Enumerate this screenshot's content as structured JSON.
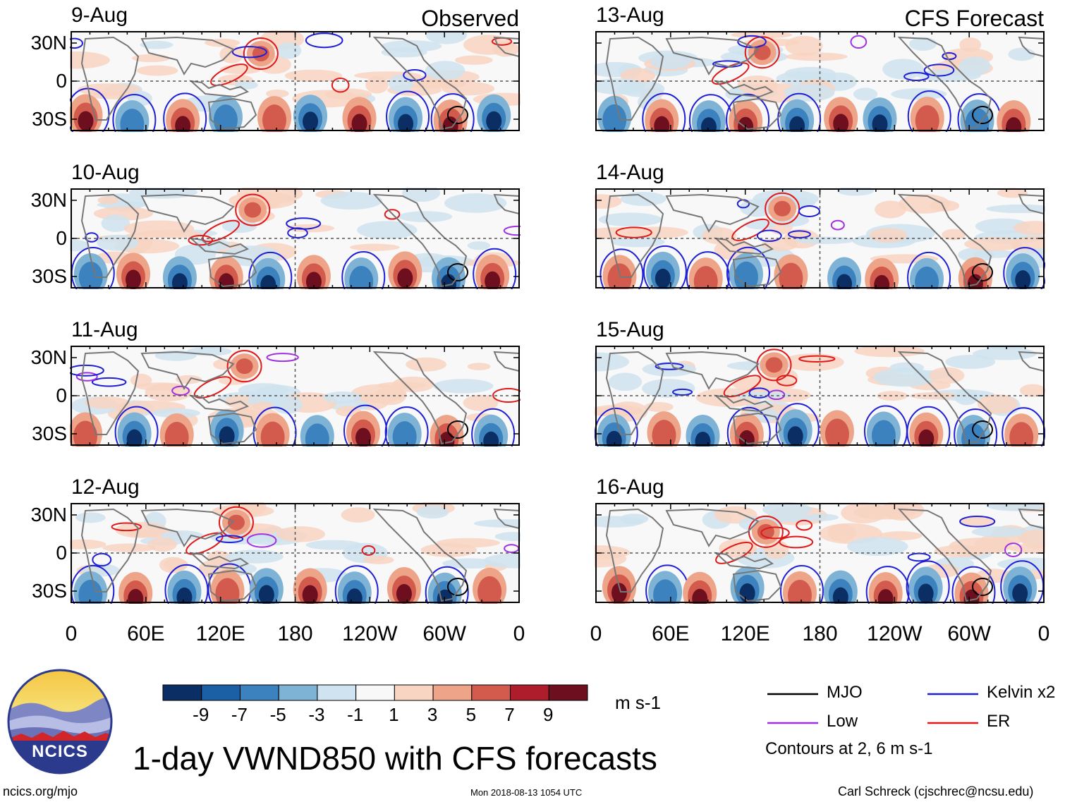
{
  "chart_data": {
    "type": "heatmap",
    "title": "1-day VWND850 with CFS forecasts",
    "variable": "VWND850",
    "units": "m s-1",
    "x_ticks": [
      "0",
      "60E",
      "120E",
      "180",
      "120W",
      "60W",
      "0"
    ],
    "y_ticks": [
      "30N",
      "0",
      "30S"
    ],
    "colorbar": {
      "ticks": [
        "-9",
        "-7",
        "-5",
        "-3",
        "-1",
        "1",
        "3",
        "5",
        "7",
        "9"
      ],
      "colors": [
        "#0b2f64",
        "#1b5fa4",
        "#3b82be",
        "#7fb3d6",
        "#cfe3f0",
        "#f8f8f8",
        "#f8d4c2",
        "#eea488",
        "#d35b4d",
        "#ae1d2c",
        "#6d0f1f"
      ]
    },
    "columns": [
      {
        "header": "Observed",
        "panels": [
          "9-Aug",
          "10-Aug",
          "11-Aug",
          "12-Aug"
        ]
      },
      {
        "header": "CFS Forecast",
        "panels": [
          "13-Aug",
          "14-Aug",
          "15-Aug",
          "16-Aug"
        ]
      }
    ],
    "legend": [
      {
        "label": "MJO",
        "color": "#000000"
      },
      {
        "label": "Kelvin x2",
        "color": "#1f1fd6"
      },
      {
        "label": "Low",
        "color": "#a030e0"
      },
      {
        "label": "ER",
        "color": "#e01818"
      }
    ],
    "contour_note": "Contours at 2, 6 m s-1"
  },
  "footer": {
    "logo_text": "NCICS",
    "left": "ncics.org/mjo",
    "center": "Mon 2018-08-13 1054 UTC",
    "right": "Carl Schreck (cjschrec@ncsu.edu)"
  }
}
